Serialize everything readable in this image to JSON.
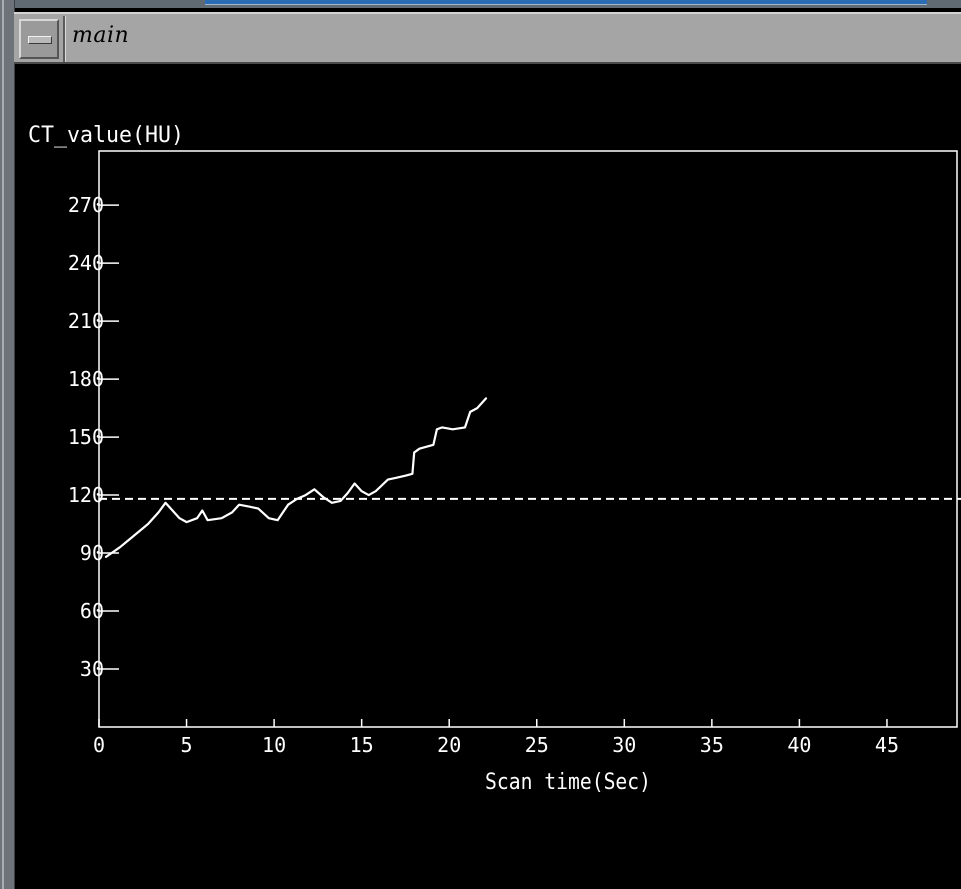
{
  "window": {
    "title": "main"
  },
  "colors": {
    "background": "#000000",
    "foreground": "#ffffff",
    "titlebar": "#a5a5a5"
  },
  "chart_data": {
    "type": "line",
    "xlabel": "Scan time(Sec)",
    "ylabel": "CT_value(HU)",
    "xlim": [
      0,
      49
    ],
    "ylim": [
      0,
      298
    ],
    "x_ticks": [
      0,
      5,
      10,
      15,
      20,
      25,
      30,
      35,
      40,
      45
    ],
    "x_tick_labels": [
      "0",
      "5",
      "10",
      "15",
      "20",
      "25",
      "30",
      "35",
      "40",
      "45"
    ],
    "y_ticks": [
      30,
      60,
      90,
      120,
      150,
      180,
      210,
      240,
      270
    ],
    "y_tick_labels": [
      "30",
      "60",
      "90",
      "120",
      "150",
      "180",
      "210",
      "240",
      "270"
    ],
    "grid": false,
    "threshold": {
      "value": 118,
      "style": "dashed"
    },
    "series": [
      {
        "x": [
          0.4,
          1.2,
          2.0,
          2.8,
          3.4,
          3.8,
          4.2,
          4.6,
          5.0,
          5.6,
          5.9,
          6.2,
          7.0,
          7.6,
          8.0,
          8.6,
          9.1,
          9.7,
          10.2,
          10.8,
          11.3,
          11.8,
          12.3,
          12.8,
          13.3,
          13.8,
          14.2,
          14.6,
          15.0,
          15.4,
          15.8,
          16.5,
          17.0,
          17.5,
          17.9,
          18.0,
          18.3,
          19.1,
          19.3,
          19.6,
          20.2,
          20.9,
          21.2,
          21.6,
          22.1
        ],
        "y": [
          88,
          93,
          99,
          105,
          111,
          116,
          112,
          108,
          106,
          108,
          112,
          107,
          108,
          111,
          115,
          114,
          113,
          108,
          107,
          115,
          118,
          120,
          123,
          119,
          116,
          117,
          121,
          126,
          122,
          120,
          122,
          128,
          129,
          130,
          131,
          142,
          144,
          146,
          154,
          155,
          154,
          155,
          163,
          165,
          170
        ]
      }
    ]
  }
}
